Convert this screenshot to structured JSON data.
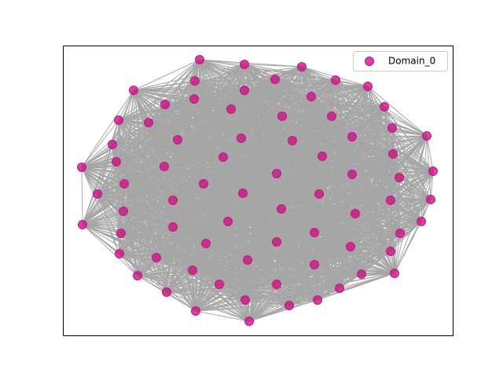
{
  "legend": {
    "label": "Domain_0",
    "color": "#c71585"
  }
}
